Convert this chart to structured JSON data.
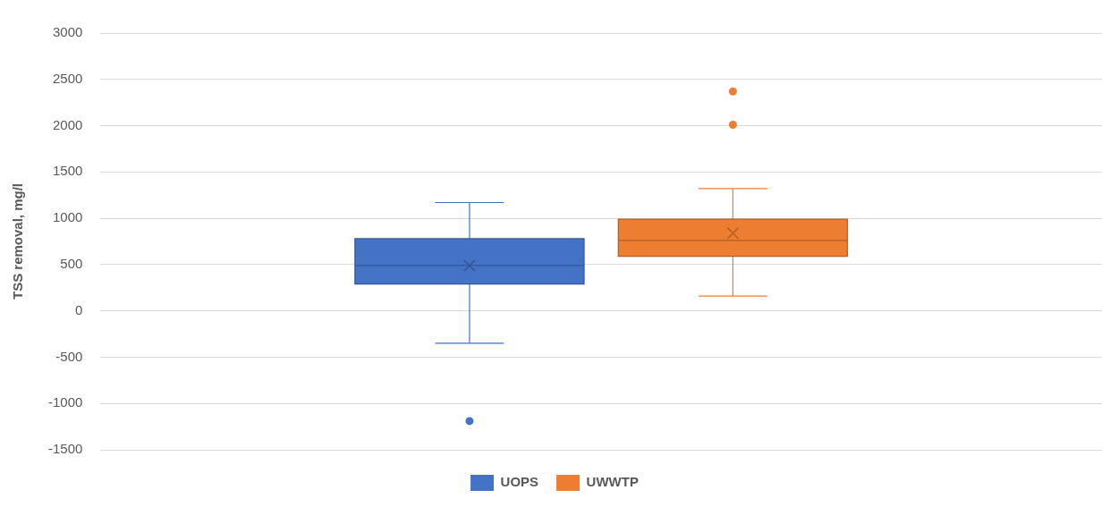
{
  "chart_data": {
    "type": "box",
    "categories": [
      null
    ],
    "ylabel": "TSS removal, mg/l",
    "ylim": [
      -1500,
      3000
    ],
    "yticks": [
      -1500,
      -1000,
      -500,
      0,
      500,
      1000,
      1500,
      2000,
      2500,
      3000
    ],
    "grid": "y",
    "legend": "bottom",
    "marker": "cross",
    "series": [
      {
        "name": "UOPS",
        "color": "#4472c4",
        "boxes": [
          {
            "low": -350,
            "q1": 290,
            "median": 490,
            "q3": 780,
            "high": 1170,
            "mean": 490,
            "outliers": [
              -1190
            ]
          }
        ]
      },
      {
        "name": "UWWTP",
        "color": "#ed7d31",
        "boxes": [
          {
            "low": 160,
            "q1": 590,
            "median": 760,
            "q3": 990,
            "high": 1320,
            "mean": 840,
            "outliers": [
              2010,
              2370
            ]
          }
        ]
      }
    ]
  }
}
